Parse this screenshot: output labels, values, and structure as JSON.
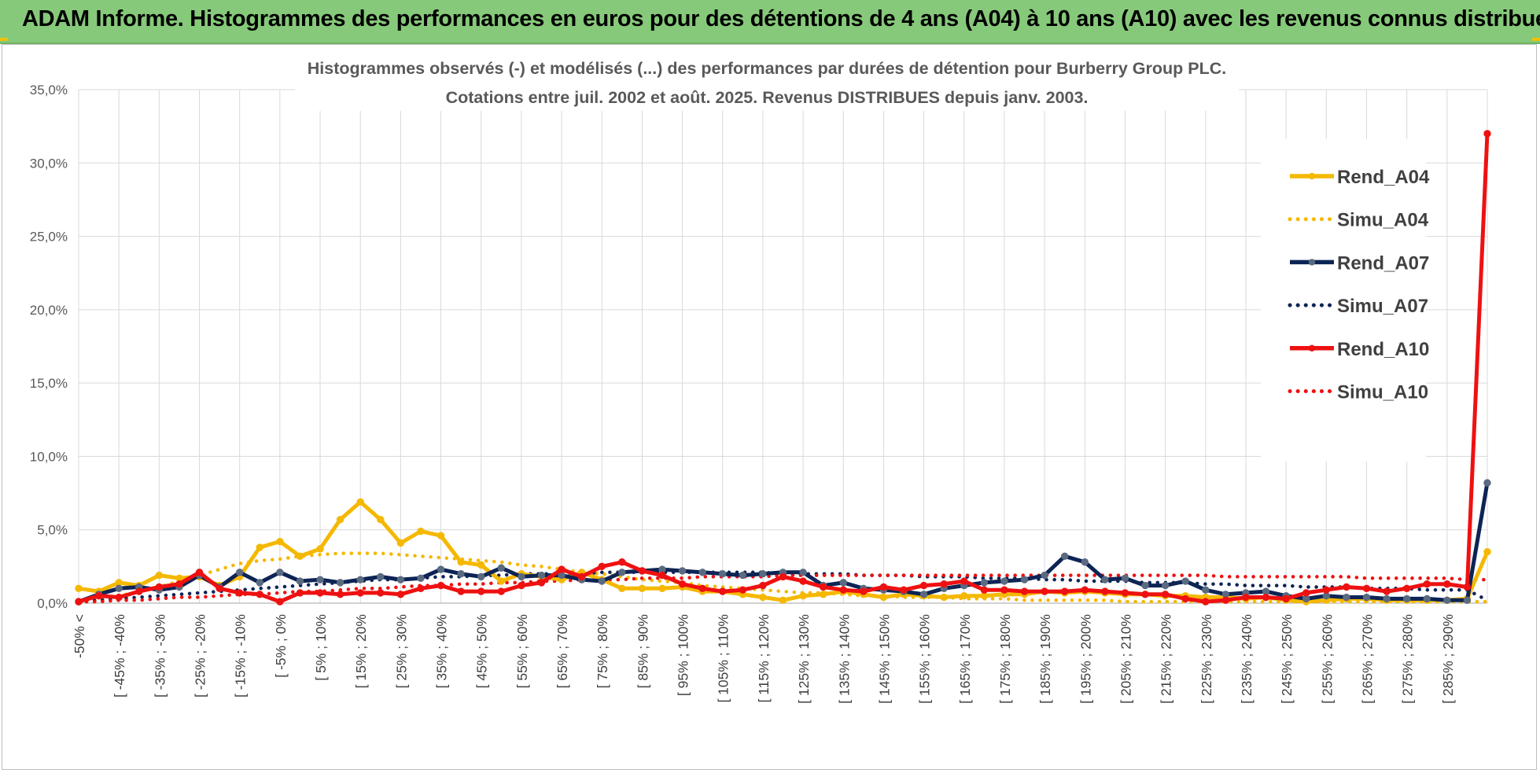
{
  "banner": {
    "title": "ADAM Informe. Histogrammes des performances en euros pour des détentions de 4 ans (A04) à 10 ans (A10) avec les revenus connus distribués"
  },
  "colors": {
    "banner_bg": "#86c97a",
    "A04": "#f5b800",
    "A07": "#0d2455",
    "A07_marker": "#5a6a80",
    "A10": "#ee1111",
    "grid": "#d9d9d9"
  },
  "chart_data": {
    "type": "line",
    "title_line1": "Histogrammes observés (-) et modélisés (...) des performances par durées de détention pour Burberry Group PLC.",
    "title_line2": "Cotations entre juil. 2002 et août. 2025. Revenus DISTRIBUES depuis janv. 2003.",
    "y_axis": {
      "min": 0,
      "max": 35,
      "ticks": [
        "0,0%",
        "5,0%",
        "10,0%",
        "15,0%",
        "20,0%",
        "25,0%",
        "30,0%",
        "35,0%"
      ]
    },
    "grid": true,
    "legend_position": "top-right",
    "x_labels_shown": [
      "-50% <",
      "[ -45% ; -40%",
      "[ -35% ; -30%",
      "[ -25% ; -20%",
      "[ -15% ; -10%",
      "[ -5% ; 0%",
      "[ 5% ; 10%",
      "[ 15% ; 20%",
      "[ 25% ; 30%",
      "[ 35% ; 40%",
      "[ 45% ; 50%",
      "[ 55% ; 60%",
      "[ 65% ; 70%",
      "[ 75% ; 80%",
      "[ 85% ; 90%",
      "[ 95% ; 100%",
      "[ 105% ; 110%",
      "[ 115% ; 120%",
      "[ 125% ; 130%",
      "[ 135% ; 140%",
      "[ 145% ; 150%",
      "[ 155% ; 160%",
      "[ 165% ; 170%",
      "[ 175% ; 180%",
      "[ 185% ; 190%",
      "[ 195% ; 200%",
      "[ 205% ; 210%",
      "[ 215% ; 220%",
      "[ 225% ; 230%",
      "[ 235% ; 240%",
      "[ 245% ; 250%",
      "[ 255% ; 260%",
      "[ 265% ; 270%",
      "[ 275% ; 280%",
      "[ 285% ; 290%"
    ],
    "n_points": 71,
    "series": [
      {
        "name": "Rend_A04",
        "style": "solid",
        "values": [
          1.0,
          0.8,
          1.4,
          1.2,
          1.9,
          1.7,
          1.8,
          1.2,
          1.8,
          3.8,
          4.2,
          3.2,
          3.7,
          5.7,
          6.9,
          5.7,
          4.1,
          4.9,
          4.6,
          2.8,
          2.6,
          1.5,
          2.0,
          1.8,
          1.6,
          2.1,
          1.6,
          1.0,
          1.0,
          1.0,
          1.1,
          0.8,
          0.8,
          0.6,
          0.4,
          0.2,
          0.5,
          0.6,
          0.8,
          0.6,
          0.4,
          0.6,
          0.5,
          0.4,
          0.5,
          0.5,
          0.6,
          0.6,
          0.8,
          0.7,
          0.8,
          0.7,
          0.6,
          0.6,
          0.5,
          0.5,
          0.4,
          0.4,
          0.3,
          0.4,
          0.2,
          0.1,
          0.2,
          0.3,
          0.3,
          0.2,
          0.2,
          0.2,
          0.2,
          0.3,
          3.5
        ]
      },
      {
        "name": "Simu_A04",
        "style": "dotted",
        "values": [
          0.1,
          0.3,
          0.5,
          0.8,
          1.1,
          1.5,
          1.9,
          2.3,
          2.7,
          2.9,
          3.0,
          3.2,
          3.3,
          3.4,
          3.4,
          3.4,
          3.3,
          3.2,
          3.1,
          3.0,
          2.9,
          2.8,
          2.6,
          2.5,
          2.3,
          2.1,
          2.0,
          1.8,
          1.6,
          1.5,
          1.4,
          1.2,
          1.1,
          1.0,
          0.9,
          0.8,
          0.7,
          0.7,
          0.6,
          0.5,
          0.5,
          0.4,
          0.4,
          0.4,
          0.3,
          0.3,
          0.3,
          0.2,
          0.2,
          0.2,
          0.2,
          0.2,
          0.1,
          0.1,
          0.1,
          0.1,
          0.1,
          0.1,
          0.1,
          0.1,
          0.1,
          0.1,
          0.1,
          0.1,
          0.1,
          0.1,
          0.1,
          0.1,
          0.1,
          0.1,
          0.1
        ]
      },
      {
        "name": "Rend_A07",
        "style": "solid",
        "values": [
          0.1,
          0.6,
          1.0,
          1.1,
          0.9,
          1.1,
          1.9,
          1.1,
          2.1,
          1.4,
          2.1,
          1.5,
          1.6,
          1.4,
          1.6,
          1.8,
          1.6,
          1.7,
          2.3,
          2.0,
          1.8,
          2.4,
          1.8,
          1.9,
          1.9,
          1.6,
          1.5,
          2.1,
          2.2,
          2.3,
          2.2,
          2.1,
          2.0,
          1.9,
          2.0,
          2.1,
          2.1,
          1.2,
          1.4,
          1.0,
          0.9,
          0.8,
          0.6,
          1.0,
          1.2,
          1.4,
          1.5,
          1.6,
          1.9,
          3.2,
          2.8,
          1.6,
          1.7,
          1.2,
          1.2,
          1.5,
          0.9,
          0.6,
          0.7,
          0.8,
          0.5,
          0.3,
          0.5,
          0.4,
          0.4,
          0.3,
          0.3,
          0.3,
          0.2,
          0.2,
          8.2
        ]
      },
      {
        "name": "Simu_A07",
        "style": "dotted",
        "values": [
          0.1,
          0.2,
          0.3,
          0.4,
          0.5,
          0.6,
          0.7,
          0.8,
          0.9,
          1.0,
          1.1,
          1.2,
          1.3,
          1.4,
          1.5,
          1.6,
          1.6,
          1.7,
          1.8,
          1.8,
          1.9,
          1.9,
          2.0,
          2.0,
          2.0,
          2.0,
          2.1,
          2.1,
          2.1,
          2.1,
          2.1,
          2.1,
          2.1,
          2.1,
          2.1,
          2.0,
          2.0,
          2.0,
          2.0,
          1.9,
          1.9,
          1.9,
          1.8,
          1.8,
          1.8,
          1.7,
          1.7,
          1.7,
          1.6,
          1.6,
          1.5,
          1.5,
          1.5,
          1.4,
          1.4,
          1.4,
          1.3,
          1.3,
          1.2,
          1.2,
          1.2,
          1.1,
          1.1,
          1.1,
          1.0,
          1.0,
          1.0,
          0.9,
          0.9,
          0.9,
          0.2
        ]
      },
      {
        "name": "Rend_A10",
        "style": "solid",
        "values": [
          0.1,
          0.5,
          0.4,
          0.8,
          1.1,
          1.3,
          2.1,
          1.0,
          0.7,
          0.6,
          0.1,
          0.7,
          0.7,
          0.6,
          0.7,
          0.7,
          0.6,
          1.0,
          1.2,
          0.8,
          0.8,
          0.8,
          1.2,
          1.4,
          2.3,
          1.8,
          2.5,
          2.8,
          2.2,
          1.9,
          1.3,
          1.0,
          0.8,
          0.9,
          1.2,
          1.8,
          1.5,
          1.1,
          0.9,
          0.8,
          1.1,
          0.9,
          1.2,
          1.3,
          1.5,
          0.9,
          0.9,
          0.8,
          0.8,
          0.8,
          0.9,
          0.8,
          0.7,
          0.6,
          0.6,
          0.3,
          0.1,
          0.2,
          0.4,
          0.4,
          0.3,
          0.7,
          0.9,
          1.1,
          1.0,
          0.8,
          1.0,
          1.3,
          1.3,
          1.1,
          32.0
        ]
      },
      {
        "name": "Simu_A10",
        "style": "dotted",
        "values": [
          0.1,
          0.1,
          0.2,
          0.2,
          0.3,
          0.4,
          0.4,
          0.5,
          0.6,
          0.6,
          0.7,
          0.8,
          0.8,
          0.9,
          1.0,
          1.0,
          1.1,
          1.2,
          1.2,
          1.3,
          1.3,
          1.4,
          1.4,
          1.5,
          1.5,
          1.6,
          1.6,
          1.6,
          1.7,
          1.7,
          1.7,
          1.8,
          1.8,
          1.8,
          1.8,
          1.9,
          1.9,
          1.9,
          1.9,
          1.9,
          1.9,
          1.9,
          1.9,
          1.9,
          1.9,
          1.9,
          1.9,
          1.9,
          1.9,
          1.9,
          1.9,
          1.9,
          1.9,
          1.9,
          1.9,
          1.9,
          1.9,
          1.8,
          1.8,
          1.8,
          1.8,
          1.8,
          1.8,
          1.8,
          1.7,
          1.7,
          1.7,
          1.7,
          1.7,
          1.6,
          1.6
        ]
      }
    ]
  }
}
